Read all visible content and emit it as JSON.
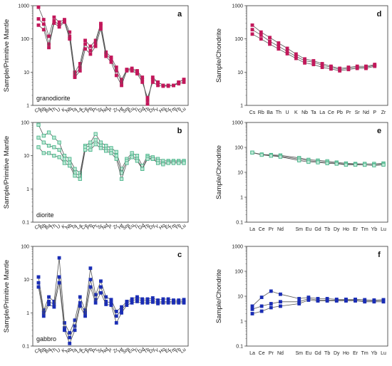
{
  "colors": {
    "a": "#c2185b",
    "b": "#4db68c",
    "c": "#1a2db5",
    "line": "#555555",
    "frame": "#333333"
  },
  "chart_data": [
    {
      "id": "a",
      "type": "line",
      "title": "a",
      "rock": "granodiorite",
      "ylabel": "Sample/Primitive Mantle",
      "yscale": "log",
      "ylim": [
        1,
        1000
      ],
      "yticks": [
        "1",
        "10",
        "100",
        "1000"
      ],
      "categories": [
        "Cs",
        "Rb",
        "Ba",
        "Th",
        "U",
        "K",
        "Nb",
        "Ta",
        "La",
        "Ce",
        "Pb",
        "Pr",
        "Sr",
        "Nd",
        "P",
        "Zr",
        "Hf",
        "Sm",
        "Eu",
        "Ti",
        "Gd",
        "Tb",
        "Dy",
        "Y",
        "Ho",
        "Er",
        "Tm",
        "Yb",
        "Lu"
      ],
      "series": [
        {
          "values": [
            900,
            380,
            120,
            450,
            320,
            380,
            160,
            10,
            18,
            90,
            60,
            90,
            290,
            40,
            28,
            14,
            6,
            12,
            13,
            11,
            7,
            1.1,
            7,
            5,
            4,
            4,
            4,
            5,
            6
          ]
        },
        {
          "values": [
            400,
            280,
            70,
            350,
            260,
            350,
            120,
            8,
            14,
            70,
            45,
            75,
            250,
            35,
            24,
            11,
            5,
            12,
            12,
            10,
            6,
            1.4,
            6,
            5,
            4,
            4,
            4,
            5,
            6
          ]
        },
        {
          "values": [
            260,
            190,
            55,
            300,
            230,
            320,
            100,
            7,
            11,
            50,
            35,
            60,
            200,
            30,
            20,
            8,
            4,
            11,
            11,
            9,
            5,
            1.7,
            5,
            4,
            3.8,
            3.8,
            4,
            4.5,
            5
          ]
        }
      ]
    },
    {
      "id": "b",
      "type": "line",
      "title": "b",
      "rock": "diorite",
      "ylabel": "Sample/Primitive Mantle",
      "yscale": "log",
      "ylim": [
        0.1,
        100
      ],
      "yticks": [
        "0.1",
        "1",
        "10",
        "100"
      ],
      "categories": [
        "Cs",
        "Rb",
        "Ba",
        "Th",
        "U",
        "K",
        "Nb",
        "Ta",
        "La",
        "Ce",
        "Pb",
        "Pr",
        "Sr",
        "Nd",
        "P",
        "Zr",
        "Hf",
        "Sm",
        "Eu",
        "Ti",
        "Gd",
        "Tb",
        "Dy",
        "Y",
        "Ho",
        "Er",
        "Tm",
        "Yb",
        "Lu"
      ],
      "series": [
        {
          "values": [
            85,
            40,
            50,
            35,
            25,
            10,
            8,
            4,
            3,
            20,
            25,
            45,
            25,
            20,
            17,
            13,
            4,
            8,
            12,
            10,
            5,
            10,
            9,
            8,
            7,
            7,
            7,
            7,
            7
          ]
        },
        {
          "values": [
            35,
            25,
            20,
            18,
            15,
            8,
            6,
            3,
            2.5,
            18,
            20,
            30,
            20,
            16,
            14,
            10,
            3,
            7,
            10,
            8,
            4,
            9,
            8,
            7,
            6,
            6.5,
            6.5,
            6.5,
            6.5
          ]
        },
        {
          "values": [
            18,
            12,
            12,
            10,
            9,
            6,
            5,
            2.5,
            2,
            15,
            15,
            22,
            17,
            14,
            12,
            8,
            2,
            6,
            9,
            7,
            4,
            8,
            8,
            6,
            5.5,
            6,
            6,
            6,
            6
          ]
        }
      ]
    },
    {
      "id": "c",
      "type": "line",
      "title": "c",
      "rock": "gabbro",
      "ylabel": "Sample/Primitive Mantle",
      "yscale": "log",
      "ylim": [
        0.1,
        100
      ],
      "yticks": [
        "0.1",
        "1",
        "10",
        "100"
      ],
      "categories": [
        "Cs",
        "Rb",
        "Ba",
        "Th",
        "U",
        "K",
        "Nb",
        "Ta",
        "La",
        "Ce",
        "Pb",
        "Pr",
        "Sr",
        "Nd",
        "P",
        "Zr",
        "Hf",
        "Sm",
        "Eu",
        "Ti",
        "Gd",
        "Tb",
        "Dy",
        "Y",
        "Ho",
        "Er",
        "Tm",
        "Yb",
        "Lu"
      ],
      "series": [
        {
          "values": [
            12,
            1.2,
            3,
            2.2,
            45,
            0.5,
            0.25,
            0.6,
            3,
            1.2,
            22,
            3.5,
            9,
            3,
            2.5,
            1.1,
            1.5,
            2.2,
            2.6,
            3,
            2.6,
            2.6,
            2.8,
            2.4,
            2.6,
            2.6,
            2.4,
            2.4,
            2.5
          ]
        },
        {
          "values": [
            8,
            1,
            2.2,
            1.8,
            12,
            0.35,
            0.18,
            0.4,
            2,
            1,
            10,
            2.5,
            6,
            2.2,
            2,
            0.8,
            1.2,
            2,
            2.3,
            2.6,
            2.3,
            2.3,
            2.4,
            2.1,
            2.2,
            2.2,
            2.2,
            2.2,
            2.2
          ]
        },
        {
          "values": [
            6,
            0.8,
            1.8,
            1.5,
            8,
            0.3,
            0.12,
            0.3,
            1.6,
            0.8,
            6,
            2,
            4,
            1.8,
            1.7,
            0.5,
            1,
            1.7,
            2,
            2.2,
            2,
            2,
            2.1,
            1.9,
            2,
            2,
            2,
            2,
            2
          ]
        }
      ]
    },
    {
      "id": "d",
      "type": "line",
      "title": "d",
      "ylabel": "Sample/Chondrite",
      "yscale": "log",
      "ylim": [
        1,
        1000
      ],
      "yticks": [
        "1",
        "10",
        "100",
        "1000"
      ],
      "categories": [
        "Cs",
        "Rb",
        "Ba",
        "Th",
        "U",
        "K",
        "Nb",
        "Ta",
        "La",
        "Ce",
        "Pb",
        "Pr",
        "Sr",
        "Nd",
        "P",
        "Zr"
      ],
      "series": [
        {
          "values": [
            260,
            160,
            110,
            75,
            52,
            35,
            25,
            22,
            18,
            15,
            13,
            14,
            15,
            15,
            17,
            null
          ]
        },
        {
          "values": [
            190,
            130,
            85,
            60,
            42,
            30,
            22,
            20,
            16,
            14,
            12,
            13,
            14,
            14,
            16,
            null
          ]
        },
        {
          "values": [
            140,
            100,
            70,
            50,
            36,
            26,
            19,
            17,
            14,
            12.5,
            11,
            12,
            13,
            13,
            15,
            null
          ]
        }
      ]
    },
    {
      "id": "e",
      "type": "line",
      "title": "e",
      "ylabel": "Sample/Chondrite",
      "yscale": "log",
      "ylim": [
        0.1,
        1000
      ],
      "yticks": [
        "0.1",
        "1",
        "10",
        "100",
        "1000"
      ],
      "categories": [
        "La",
        "Ce",
        "Pr",
        "Nd",
        "",
        "Sm",
        "Eu",
        "Gd",
        "Tb",
        "Dy",
        "Ho",
        "Er",
        "Tm",
        "Yb",
        "Lu"
      ],
      "series": [
        {
          "values": [
            62,
            52,
            50,
            48,
            null,
            38,
            32,
            30,
            28,
            25,
            23,
            22,
            22,
            22,
            23
          ]
        },
        {
          "values": [
            62,
            52,
            48,
            44,
            null,
            34,
            29,
            27,
            25,
            23,
            21,
            21,
            20,
            20,
            21
          ]
        },
        {
          "values": [
            62,
            50,
            46,
            42,
            null,
            30,
            26,
            25,
            23,
            22,
            20,
            20,
            20,
            19,
            20
          ]
        }
      ]
    },
    {
      "id": "f",
      "type": "line",
      "title": "f",
      "ylabel": "Sample/Chondrite",
      "yscale": "log",
      "ylim": [
        0.1,
        1000
      ],
      "yticks": [
        "0.1",
        "1",
        "10",
        "100",
        "1000"
      ],
      "categories": [
        "La",
        "Ce",
        "Pr",
        "Nd",
        "",
        "Sm",
        "Eu",
        "Gd",
        "Tb",
        "Dy",
        "Ho",
        "Er",
        "Tm",
        "Yb",
        "Lu"
      ],
      "series": [
        {
          "values": [
            4,
            9,
            16,
            12,
            null,
            8,
            9,
            8,
            8,
            7.5,
            7.5,
            7.5,
            7.2,
            7,
            7.2
          ]
        },
        {
          "values": [
            3,
            4,
            5,
            6,
            null,
            6,
            8,
            7,
            7,
            7,
            7,
            7,
            6.5,
            6.5,
            6.8
          ]
        },
        {
          "values": [
            2,
            2.5,
            3.5,
            4,
            null,
            5,
            7,
            6.5,
            6.5,
            6.5,
            6.5,
            6.5,
            6,
            6,
            6
          ]
        }
      ]
    }
  ]
}
